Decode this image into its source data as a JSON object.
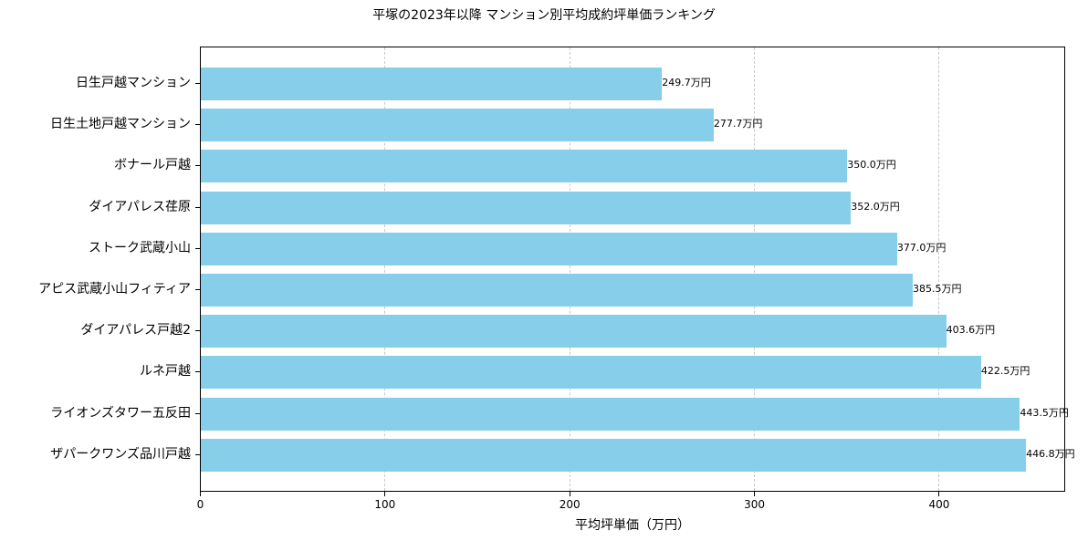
{
  "chart_data": {
    "type": "bar",
    "orientation": "horizontal",
    "title": "平塚の2023年以降 マンション別平均成約坪単価ランキング",
    "xlabel": "平均坪単価（万円）",
    "ylabel": "",
    "xlim": [
      0,
      468.5
    ],
    "xticks": [
      0,
      100,
      200,
      300,
      400
    ],
    "grid": {
      "x": true,
      "y": false,
      "style": "dashed"
    },
    "bar_color": "#87ceeb",
    "categories": [
      "日生戸越マンション",
      "日生土地戸越マンション",
      "ボナール戸越",
      "ダイアパレス荏原",
      "ストーク武蔵小山",
      "アピス武蔵小山フィティア",
      "ダイアパレス戸越2",
      "ルネ戸越",
      "ライオンズタワー五反田",
      "ザパークワンズ品川戸越"
    ],
    "values": [
      249.7,
      277.7,
      350.0,
      352.0,
      377.0,
      385.5,
      403.6,
      422.5,
      443.5,
      446.8
    ],
    "value_labels": [
      "249.7万円",
      "277.7万円",
      "350.0万円",
      "352.0万円",
      "377.0万円",
      "385.5万円",
      "403.6万円",
      "422.5万円",
      "443.5万円",
      "446.8万円"
    ]
  }
}
